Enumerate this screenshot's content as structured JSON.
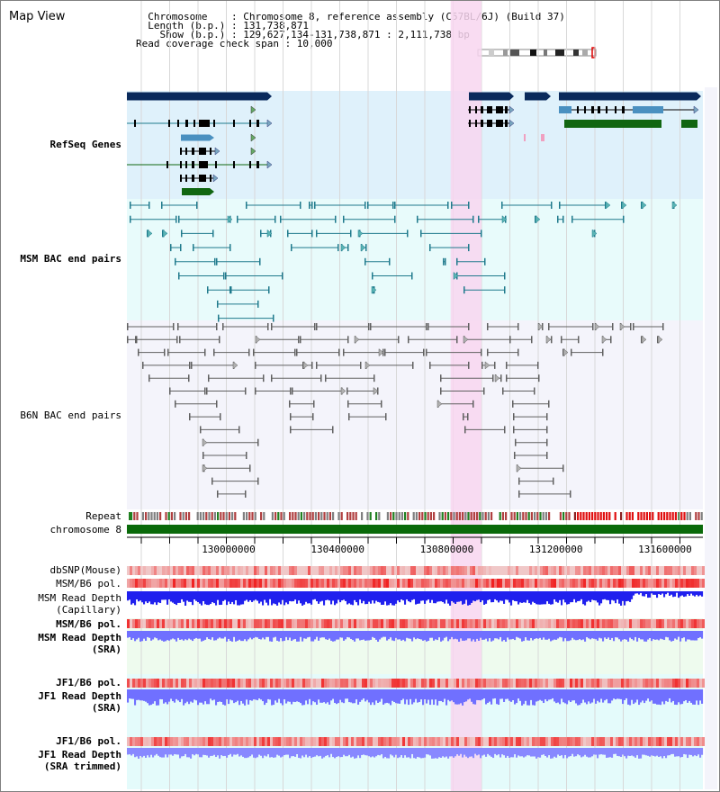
{
  "view_title": "Map View",
  "header": {
    "lines": [
      "  Chromosome    : Chromosome 8, reference assembly (C57BL/6J) (Build 37)",
      "  Length (b.p.) : 131,738,871",
      "    Show (b.p.) : 129,627,134-131,738,871 : 2,111,738 bp",
      "Read coverage check span : 10,000"
    ]
  },
  "colors": {
    "refseq_bg": "#dff1fb",
    "msm_bg": "#e8fbfb",
    "b6n_bg": "#f4f4fb",
    "highlight": "#f8d6f0",
    "gene_dark": "#0a2a5c",
    "gene_light": "#4a90c0",
    "gene_green": "#116611",
    "msm_pair": "#1f7a8c",
    "b6n_pair": "#606060",
    "chromosome_bar": "#0a6a0a",
    "snp_red": "#e53030",
    "depth_blue": "#2020ee",
    "depth_lightblue": "#7070ff"
  },
  "tracks": [
    {
      "id": "refseq",
      "label": "RefSeq Genes",
      "color": "#1a1aaa"
    },
    {
      "id": "msm_bac",
      "label": "MSM BAC end pairs",
      "color": "#207070"
    },
    {
      "id": "b6n_bac",
      "label": "B6N BAC end pairs",
      "color": "#505050"
    },
    {
      "id": "repeat",
      "label": "Repeat",
      "color": "#000000"
    },
    {
      "id": "chromosome",
      "label": "chromosome 8",
      "color": "#000000"
    },
    {
      "id": "dbsnp",
      "label": "dbSNP(Mouse)",
      "color": "#505050"
    },
    {
      "id": "msm_b6_pol_1",
      "label": "MSM/B6 pol.",
      "color": "#505050"
    },
    {
      "id": "msm_depth_cap",
      "label": "MSM Read Depth\n(Capillary)",
      "color": "#505050"
    },
    {
      "id": "msm_b6_pol_2",
      "label": "MSM/B6 pol.",
      "color": "#d08a00"
    },
    {
      "id": "msm_depth_sra",
      "label": "MSM Read Depth\n(SRA)",
      "color": "#1a1aaa"
    },
    {
      "id": "jf1_b6_pol_1",
      "label": "JF1/B6 pol.",
      "color": "#d08a00"
    },
    {
      "id": "jf1_depth_sra",
      "label": "JF1 Read Depth\n(SRA)",
      "color": "#1a1aaa"
    },
    {
      "id": "jf1_b6_pol_2",
      "label": "JF1/B6 pol.",
      "color": "#d08a00"
    },
    {
      "id": "jf1_depth_trim",
      "label": "JF1 Read Depth\n(SRA trimmed)",
      "color": "#1a1aaa"
    }
  ],
  "ruler": {
    "range_bp": [
      129627134,
      131738871
    ],
    "labels": [
      "130000000",
      "130400000",
      "130800000",
      "131200000",
      "131600000"
    ],
    "label_values": [
      130000000,
      130400000,
      130800000,
      131200000,
      131600000
    ]
  },
  "highlight_range_bp": [
    130814000,
    130927000
  ]
}
